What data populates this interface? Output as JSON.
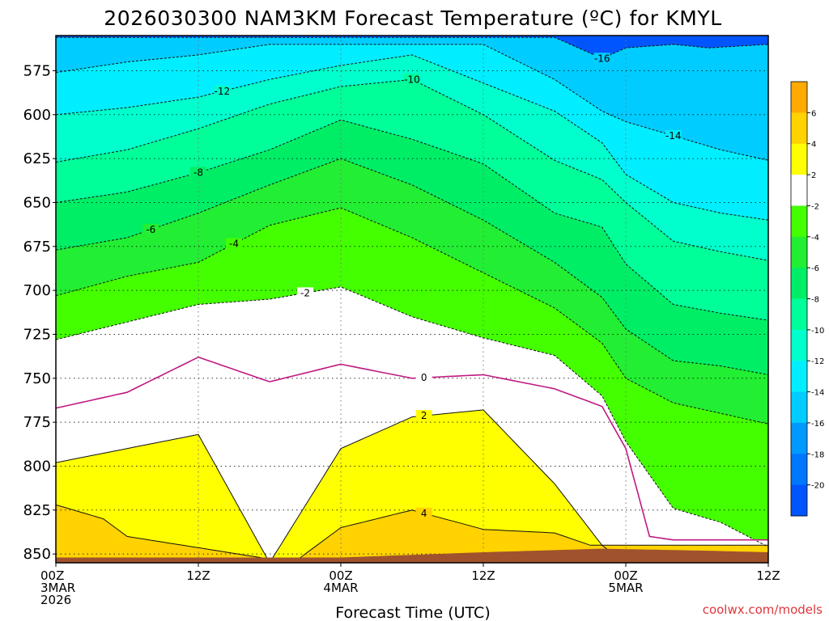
{
  "chart_data": {
    "type": "contour",
    "title": "2026030300 NAM3KM Forecast Temperature (ºC) for KMYL",
    "xlabel": "Forecast Time (UTC)",
    "ylabel": "",
    "x_range_hours": [
      0,
      60
    ],
    "y_range_hpa": [
      555,
      855
    ],
    "y_ticks": [
      {
        "value": 575,
        "label": "575"
      },
      {
        "value": 600,
        "label": "600"
      },
      {
        "value": 625,
        "label": "625"
      },
      {
        "value": 650,
        "label": "650"
      },
      {
        "value": 675,
        "label": "675"
      },
      {
        "value": 700,
        "label": "700"
      },
      {
        "value": 725,
        "label": "725"
      },
      {
        "value": 750,
        "label": "750"
      },
      {
        "value": 775,
        "label": "775"
      },
      {
        "value": 800,
        "label": "800"
      },
      {
        "value": 825,
        "label": "825"
      },
      {
        "value": 850,
        "label": "850"
      }
    ],
    "x_ticks": [
      {
        "hour": 0,
        "line1": "00Z",
        "line2": "3MAR",
        "line3": "2026"
      },
      {
        "hour": 12,
        "line1": "12Z",
        "line2": "",
        "line3": ""
      },
      {
        "hour": 24,
        "line1": "00Z",
        "line2": "4MAR",
        "line3": ""
      },
      {
        "hour": 36,
        "line1": "12Z",
        "line2": "",
        "line3": ""
      },
      {
        "hour": 48,
        "line1": "00Z",
        "line2": "5MAR",
        "line3": ""
      },
      {
        "hour": 60,
        "line1": "12Z",
        "line2": "",
        "line3": ""
      }
    ],
    "colorbar": {
      "bins": [
        {
          "lo": 6,
          "hi": 8,
          "color": "#ffaa00"
        },
        {
          "lo": 4,
          "hi": 6,
          "color": "#ffd200"
        },
        {
          "lo": 2,
          "hi": 4,
          "color": "#ffff00"
        },
        {
          "lo": -2,
          "hi": 2,
          "color": "#ffffff"
        },
        {
          "lo": -4,
          "hi": -2,
          "color": "#44ff00"
        },
        {
          "lo": -6,
          "hi": -4,
          "color": "#22ee33"
        },
        {
          "lo": -8,
          "hi": -6,
          "color": "#00ee66"
        },
        {
          "lo": -10,
          "hi": -8,
          "color": "#00ff99"
        },
        {
          "lo": -12,
          "hi": -10,
          "color": "#00ffcc"
        },
        {
          "lo": -14,
          "hi": -12,
          "color": "#00eeff"
        },
        {
          "lo": -16,
          "hi": -14,
          "color": "#00ccff"
        },
        {
          "lo": -18,
          "hi": -16,
          "color": "#0099ff"
        },
        {
          "lo": -20,
          "hi": -18,
          "color": "#0077ff"
        },
        {
          "lo": -22,
          "hi": -20,
          "color": "#0055ff"
        }
      ],
      "labels": [
        "6",
        "4",
        "2",
        "-2",
        "-4",
        "-6",
        "-8",
        "-10",
        "-12",
        "-14",
        "-16",
        "-18",
        "-20"
      ]
    },
    "isotherms": [
      {
        "temp": -16,
        "pressure_by_hour": {
          "0": 556,
          "6": 556,
          "12": 556,
          "18": 556,
          "24": 556,
          "30": 556,
          "36": 556,
          "42": 556,
          "46": 568,
          "48": 562,
          "52": 560,
          "55": 562,
          "60": 560
        }
      },
      {
        "temp": -14,
        "pressure_by_hour": {
          "0": 576,
          "6": 570,
          "12": 566,
          "18": 560,
          "24": 560,
          "30": 560,
          "36": 560,
          "42": 580,
          "46": 598,
          "48": 604,
          "52": 612,
          "56": 620,
          "60": 626
        }
      },
      {
        "temp": -12,
        "pressure_by_hour": {
          "0": 600,
          "6": 596,
          "12": 590,
          "18": 580,
          "24": 572,
          "30": 566,
          "36": 582,
          "42": 598,
          "46": 616,
          "48": 634,
          "52": 650,
          "56": 656,
          "60": 660
        }
      },
      {
        "temp": -10,
        "pressure_by_hour": {
          "0": 627,
          "6": 620,
          "12": 608,
          "18": 594,
          "24": 584,
          "30": 580,
          "36": 600,
          "42": 626,
          "46": 637,
          "48": 650,
          "52": 672,
          "56": 678,
          "60": 683
        }
      },
      {
        "temp": -8,
        "pressure_by_hour": {
          "0": 650,
          "6": 644,
          "12": 633,
          "18": 620,
          "24": 603,
          "30": 614,
          "36": 628,
          "42": 656,
          "46": 664,
          "48": 685,
          "52": 708,
          "56": 713,
          "60": 717
        }
      },
      {
        "temp": -6,
        "pressure_by_hour": {
          "0": 677,
          "6": 670,
          "12": 656,
          "18": 640,
          "24": 625,
          "30": 640,
          "36": 660,
          "42": 684,
          "46": 704,
          "48": 722,
          "52": 740,
          "56": 743,
          "60": 748
        }
      },
      {
        "temp": -4,
        "pressure_by_hour": {
          "0": 703,
          "6": 692,
          "12": 684,
          "18": 663,
          "24": 653,
          "30": 670,
          "36": 690,
          "42": 710,
          "46": 730,
          "48": 750,
          "52": 764,
          "56": 770,
          "60": 776
        }
      },
      {
        "temp": -2,
        "pressure_by_hour": {
          "0": 728,
          "6": 718,
          "12": 708,
          "18": 705,
          "24": 698,
          "30": 715,
          "36": 727,
          "42": 737,
          "46": 760,
          "48": 786,
          "52": 824,
          "56": 832,
          "60": 846
        }
      },
      {
        "temp": 0,
        "pressure_by_hour": {
          "0": 767,
          "6": 758,
          "12": 738,
          "18": 752,
          "24": 742,
          "30": 750,
          "36": 748,
          "42": 756,
          "46": 766,
          "48": 790,
          "50": 840,
          "52": 842
        }
      },
      {
        "temp": 2,
        "pressure_by_hour": {
          "0": 798,
          "6": 790,
          "12": 782,
          "18": 855,
          "24": 790,
          "30": 772,
          "36": 768,
          "42": 810,
          "46": 845,
          "48": 856
        }
      },
      {
        "temp": 4,
        "pressure_by_hour": {
          "0": 822,
          "4": 830,
          "6": 840,
          "20": 855,
          "24": 835,
          "30": 825,
          "36": 836,
          "42": 838,
          "45": 845
        }
      }
    ],
    "contour_labels": [
      "-16",
      "-14",
      "-12",
      "-10",
      "-8",
      "-6",
      "-4",
      "-2",
      "0",
      "2",
      "4"
    ],
    "terrain": {
      "color": "#a0522d",
      "surface_hpa_by_hour": {
        "0": 852,
        "24": 852,
        "36": 849,
        "46": 847,
        "54": 848,
        "60": 849
      }
    },
    "fill_colors": {
      "freezing_line": "#c01880",
      "contour_dashed": "#111111"
    }
  },
  "watermark": "coolwx.com/models"
}
